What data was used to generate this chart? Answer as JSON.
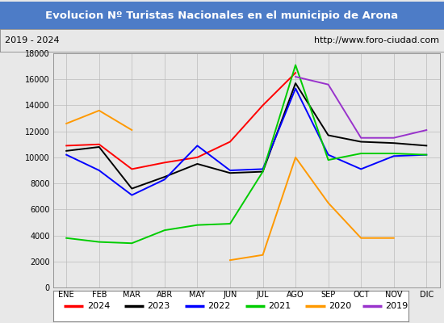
{
  "title": "Evolucion Nº Turistas Nacionales en el municipio de Arona",
  "subtitle_left": "2019 - 2024",
  "subtitle_right": "http://www.foro-ciudad.com",
  "title_bg_color": "#4D7CC7",
  "title_text_color": "#FFFFFF",
  "months": [
    "ENE",
    "FEB",
    "MAR",
    "ABR",
    "MAY",
    "JUN",
    "JUL",
    "AGO",
    "SEP",
    "OCT",
    "NOV",
    "DIC"
  ],
  "ylim": [
    0,
    18000
  ],
  "yticks": [
    0,
    2000,
    4000,
    6000,
    8000,
    10000,
    12000,
    14000,
    16000,
    18000
  ],
  "series": {
    "2024": {
      "color": "#FF0000",
      "data": [
        10900,
        11000,
        9100,
        9600,
        10000,
        11200,
        14000,
        16500,
        null,
        null,
        null,
        null
      ]
    },
    "2023": {
      "color": "#000000",
      "data": [
        10500,
        10800,
        7600,
        8500,
        9500,
        8800,
        8900,
        15700,
        11700,
        11200,
        11100,
        10900
      ]
    },
    "2022": {
      "color": "#0000FF",
      "data": [
        10200,
        9000,
        7100,
        8300,
        10900,
        9000,
        9100,
        15300,
        10200,
        9100,
        10100,
        10200
      ]
    },
    "2021": {
      "color": "#00CC00",
      "data": [
        3800,
        3500,
        3400,
        4400,
        4800,
        4900,
        8900,
        17100,
        9800,
        10300,
        10300,
        10200
      ]
    },
    "2020": {
      "color": "#FF9900",
      "data": [
        12600,
        13600,
        12100,
        null,
        null,
        2100,
        2500,
        10000,
        6500,
        3800,
        3800,
        null
      ]
    },
    "2019": {
      "color": "#9933CC",
      "data": [
        null,
        null,
        null,
        null,
        null,
        null,
        null,
        16200,
        15600,
        11500,
        11500,
        12100
      ]
    }
  },
  "background_color": "#E8E8E8",
  "plot_bg_color": "#E8E8E8",
  "grid_color": "#BBBBBB",
  "legend_order": [
    "2024",
    "2023",
    "2022",
    "2021",
    "2020",
    "2019"
  ]
}
